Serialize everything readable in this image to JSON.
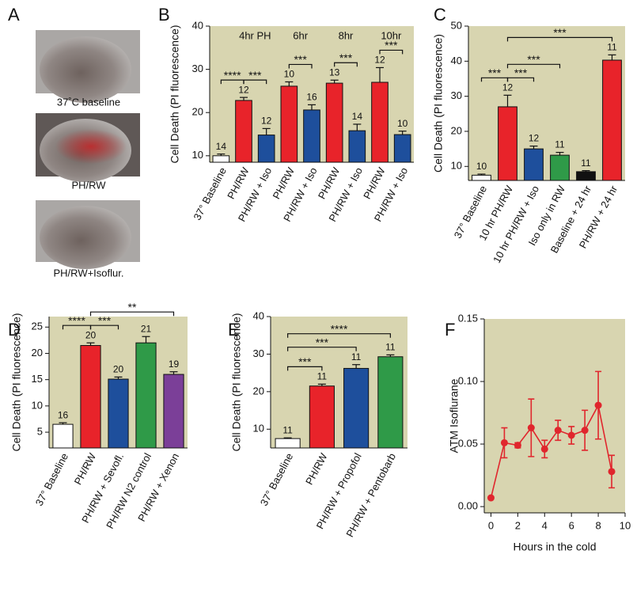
{
  "figure_panel_a": {
    "panel": "A",
    "captions": [
      "37˚C baseline",
      "PH/RW",
      "PH/RW+Isoflur."
    ]
  },
  "chart_data": [
    {
      "type": "bar",
      "panel": "B",
      "ylabel": "Cell Death (PI fluorescence)",
      "categories": [
        "37° Baseline",
        "PH/RW",
        "PH/RW + Iso",
        "PH/RW",
        "PH/RW + Iso",
        "PH/RW",
        "PH/RW + Iso",
        "PH/RW",
        "PH/RW + Iso"
      ],
      "values": [
        10,
        22.8,
        14.8,
        26.1,
        20.6,
        26.8,
        15.8,
        27,
        14.9
      ],
      "errors": [
        0.4,
        0.7,
        1.5,
        1,
        1.2,
        0.7,
        1.5,
        3.4,
        0.8
      ],
      "n_labels": [
        14,
        12,
        12,
        10,
        16,
        13,
        14,
        12,
        10
      ],
      "colors": [
        "#ffffff",
        "#e8232a",
        "#1e4f9c",
        "#e8232a",
        "#1e4f9c",
        "#e8232a",
        "#1e4f9c",
        "#e8232a",
        "#1e4f9c"
      ],
      "group_labels": [
        "4hr PH",
        "6hr",
        "8hr",
        "10hr"
      ],
      "significance": [
        {
          "label": "****",
          "from": 0,
          "to": 1
        },
        {
          "label": "***",
          "from": 1,
          "to": 2
        },
        {
          "label": "***",
          "from": 3,
          "to": 4
        },
        {
          "label": "***",
          "from": 5,
          "to": 6
        },
        {
          "label": "***",
          "from": 7,
          "to": 8
        }
      ],
      "ylim": [
        8.5,
        40
      ],
      "yticks": [
        10,
        20,
        30,
        40
      ]
    },
    {
      "type": "bar",
      "panel": "C",
      "ylabel": "Cell Death (PI fluorescence)",
      "categories": [
        "37° Baseline",
        "10 hr PH/RW",
        "10 hr PH/RW + Iso",
        "Iso only in RW",
        "Baseline + 24 hr",
        "PH/RW + 24 hr"
      ],
      "values": [
        7.5,
        27,
        15,
        13.2,
        8.5,
        40.3
      ],
      "errors": [
        0.3,
        3.3,
        0.8,
        0.8,
        0.3,
        1.5
      ],
      "n_labels": [
        10,
        12,
        12,
        11,
        11,
        11
      ],
      "colors": [
        "#ffffff",
        "#e8232a",
        "#1e4f9c",
        "#2f9a48",
        "#111111",
        "#e8232a"
      ],
      "significance": [
        {
          "label": "***",
          "from": 0,
          "to": 1
        },
        {
          "label": "***",
          "from": 1,
          "to": 2
        },
        {
          "label": "***",
          "from": 1,
          "to": 3
        },
        {
          "label": "***",
          "from": 1,
          "to": 5
        }
      ],
      "ylim": [
        6,
        50
      ],
      "yticks": [
        10,
        20,
        30,
        40,
        50
      ]
    },
    {
      "type": "bar",
      "panel": "D",
      "ylabel": "Cell Death (PI fluorescence)",
      "categories": [
        "37° Baseline",
        "PH/RW",
        "PH/RW + Sevofl.",
        "PH/RW N2 control",
        "PH/RW + Xenon"
      ],
      "values": [
        6.5,
        21.5,
        15.1,
        22,
        16
      ],
      "errors": [
        0.3,
        0.5,
        0.4,
        1.2,
        0.5
      ],
      "n_labels": [
        16,
        20,
        20,
        21,
        19
      ],
      "colors": [
        "#ffffff",
        "#e8232a",
        "#1e4f9c",
        "#2f9a48",
        "#7b3f98"
      ],
      "significance": [
        {
          "label": "****",
          "from": 0,
          "to": 1
        },
        {
          "label": "***",
          "from": 1,
          "to": 2
        },
        {
          "label": "**",
          "from": 1,
          "to": 4
        }
      ],
      "ylim": [
        2,
        27
      ],
      "yticks": [
        5,
        10,
        15,
        20,
        25
      ]
    },
    {
      "type": "bar",
      "panel": "E",
      "ylabel": "Cell Death (PI fluorescence)",
      "categories": [
        "37° Baseline",
        "PH/RW",
        "PH/RW + Propofol",
        "PH/RW + Pentobarb"
      ],
      "values": [
        7.5,
        21.5,
        26.2,
        29.3
      ],
      "errors": [
        0.2,
        0.5,
        1,
        0.5
      ],
      "n_labels": [
        11,
        11,
        11,
        11
      ],
      "colors": [
        "#ffffff",
        "#e8232a",
        "#1e4f9c",
        "#2f9a48"
      ],
      "significance": [
        {
          "label": "***",
          "from": 0,
          "to": 1
        },
        {
          "label": "***",
          "from": 0,
          "to": 2
        },
        {
          "label": "****",
          "from": 0,
          "to": 3
        }
      ],
      "ylim": [
        5,
        40
      ],
      "yticks": [
        10,
        20,
        30,
        40
      ]
    },
    {
      "type": "line",
      "panel": "F",
      "xlabel": "Hours in the cold",
      "ylabel": "ATM Isoflurane",
      "color": "#e0262d",
      "x": [
        0,
        1,
        2,
        3,
        4,
        5,
        6,
        7,
        8,
        9
      ],
      "y": [
        0.007,
        0.051,
        0.049,
        0.063,
        0.046,
        0.061,
        0.057,
        0.061,
        0.081,
        0.028
      ],
      "errors": [
        0.001,
        0.012,
        0.002,
        0.023,
        0.007,
        0.008,
        0.007,
        0.016,
        0.027,
        0.013
      ],
      "xlim": [
        -0.5,
        10
      ],
      "xticks": [
        0,
        2,
        4,
        6,
        8,
        10
      ],
      "ylim": [
        -0.005,
        0.15
      ],
      "yticks": [
        {
          "value": 0,
          "label": "0.00"
        },
        0.05,
        {
          "value": 0.1,
          "label": "0.10"
        },
        0.15
      ]
    }
  ]
}
